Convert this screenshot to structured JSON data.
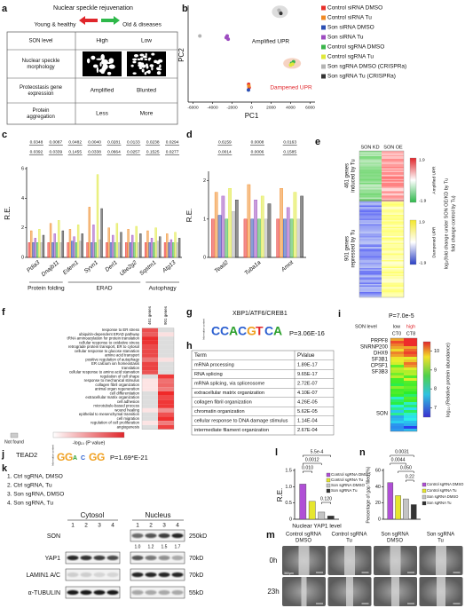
{
  "chart_data": [
    {
      "type": "scatter",
      "label": "b",
      "xlabel": "PC1",
      "ylabel": "PC2",
      "xlim": [
        -6500,
        6500
      ],
      "xticks": [
        -6000,
        -4000,
        -2000,
        0,
        2000,
        4000,
        6000
      ],
      "ylim": [
        -3000,
        3000
      ],
      "annotations": [
        "Amplified UPR",
        "Dampened UPR"
      ],
      "series": [
        {
          "name": "Control siRNA DMSO",
          "color": "#e8302a",
          "x": [
            -300,
            -250
          ],
          "y": [
            -1900,
            -2100
          ]
        },
        {
          "name": "Control siRNA Tu",
          "color": "#f08a24",
          "x": [
            -280
          ],
          "y": [
            -2000
          ]
        },
        {
          "name": "Son siRNA DMSO",
          "color": "#2b4fb3",
          "x": [
            -320
          ],
          "y": [
            -2250
          ]
        },
        {
          "name": "Son siRNA Tu",
          "color": "#9d4cc0",
          "x": [
            -2600,
            -2400,
            -2500
          ],
          "y": [
            1000,
            900,
            1100
          ]
        },
        {
          "name": "Control sgRNA DMSO",
          "color": "#3ab54a",
          "x": [
            4100,
            4300
          ],
          "y": [
            -600,
            -500
          ]
        },
        {
          "name": "Control sgRNA Tu",
          "color": "#dfe83a",
          "x": [
            4000,
            4200
          ],
          "y": [
            -700,
            -650
          ]
        },
        {
          "name": "Son sgRNA DMSO (CRISPRa)",
          "color": "#b3b3b3",
          "x": [
            2800,
            2900,
            -5300
          ],
          "y": [
            2700,
            2600,
            1100
          ]
        },
        {
          "name": "Son sgRNA Tu (CRISPRa)",
          "color": "#333333",
          "x": [
            3000
          ],
          "y": [
            2500
          ]
        }
      ]
    },
    {
      "type": "bar",
      "label": "c",
      "ylabel": "R.E.",
      "ylim": [
        0,
        6
      ],
      "yticks": [
        0,
        2,
        4,
        6
      ],
      "categories": [
        "Pdia3",
        "Dnajb11",
        "Edem1",
        "Syvn1",
        "Derl1",
        "Ube2g2",
        "Sqstm1",
        "Atg13"
      ],
      "pvalues_top": [
        "0.0348",
        "0.0087",
        "0.0482",
        "0.0040",
        "0.0281",
        "0.0133",
        "0.0238",
        "0.0294"
      ],
      "pvalues_bottom": [
        "0.0392",
        "0.0339",
        "0.1455",
        "0.0338",
        "0.0664",
        "0.0257",
        "0.1525",
        "0.0277"
      ],
      "groups": [
        "Protein folding",
        "ERAD",
        "Autophagy"
      ],
      "series": [
        {
          "color": "#e8302a",
          "values": [
            1,
            1,
            1,
            1,
            1,
            1,
            1,
            1
          ]
        },
        {
          "color": "#f08a24",
          "values": [
            1.8,
            2.3,
            1.9,
            3.4,
            2.0,
            1.9,
            1.8,
            1.6
          ]
        },
        {
          "color": "#2b4fb3",
          "values": [
            1.0,
            1.0,
            1.1,
            1.0,
            1.0,
            1.0,
            1.0,
            1.0
          ]
        },
        {
          "color": "#9d4cc0",
          "values": [
            1.3,
            1.6,
            1.4,
            2.2,
            1.5,
            1.5,
            1.3,
            1.2
          ]
        },
        {
          "color": "#3ab54a",
          "values": [
            1,
            1,
            1,
            1,
            1,
            1,
            1,
            1
          ]
        },
        {
          "color": "#dfe83a",
          "values": [
            1.9,
            2.5,
            2.2,
            5.6,
            2.3,
            2.1,
            2.0,
            1.7
          ]
        },
        {
          "color": "#b3b3b3",
          "values": [
            1.0,
            1.0,
            1.1,
            1.2,
            1.0,
            1.0,
            1.1,
            1.0
          ]
        },
        {
          "color": "#333333",
          "values": [
            1.5,
            1.8,
            1.6,
            3.3,
            1.7,
            1.6,
            1.4,
            1.3
          ]
        }
      ]
    },
    {
      "type": "bar",
      "label": "d",
      "ylabel": "R.E.",
      "ylim": [
        0,
        2.2
      ],
      "yticks": [
        0,
        1,
        2
      ],
      "categories": [
        "Tead2",
        "Tuba1a",
        "Amot"
      ],
      "pvalues_top": [
        "0.6159",
        "0.0008",
        "0.0163"
      ],
      "pvalues_bottom": [
        "0.0014",
        "0.0006",
        "0.1585"
      ],
      "series": [
        {
          "color": "#e8302a",
          "values": [
            1,
            1,
            1
          ]
        },
        {
          "color": "#f08a24",
          "values": [
            1.7,
            1.9,
            1.8
          ]
        },
        {
          "color": "#2b4fb3",
          "values": [
            1.1,
            1,
            1
          ]
        },
        {
          "color": "#9d4cc0",
          "values": [
            1.6,
            1.5,
            1.3
          ]
        },
        {
          "color": "#3ab54a",
          "values": [
            1,
            1,
            1
          ]
        },
        {
          "color": "#dfe83a",
          "values": [
            1.8,
            1.6,
            1.7
          ]
        },
        {
          "color": "#b3b3b3",
          "values": [
            1.2,
            1,
            1
          ]
        },
        {
          "color": "#333333",
          "values": [
            1.5,
            1.4,
            1.6
          ]
        }
      ]
    },
    {
      "type": "bar",
      "label": "l",
      "ylabel": "R.E.",
      "xlabel": "Nuclear YAP1 level",
      "ylim": [
        0,
        1.5
      ],
      "yticks": [
        0,
        0.5,
        {
          "value": 1,
          "label": "1.0"
        },
        1.5
      ],
      "pvalues": [
        "5.5e-4",
        "0.0012",
        "0.010",
        "0.120"
      ],
      "series": [
        {
          "name": "Control sgRNA DMSO",
          "color": "#b04fd6",
          "values": [
            1.08
          ]
        },
        {
          "name": "Control sgRNA Tu",
          "color": "#e6e62e",
          "values": [
            0.55
          ]
        },
        {
          "name": "Son sgRNA DMSO",
          "color": "#c4c4c4",
          "values": [
            0.22
          ]
        },
        {
          "name": "Son sgRNA Tu",
          "color": "#333333",
          "values": [
            0.1
          ]
        }
      ]
    },
    {
      "type": "bar",
      "label": "n",
      "ylabel": "Percentage of gap filled (%)",
      "ylim": [
        0,
        60
      ],
      "yticks": [
        0,
        20,
        40,
        60
      ],
      "pvalues": [
        "0.0031",
        "0.0044",
        "0.050",
        "0.22"
      ],
      "series": [
        {
          "name": "Control sgRNA DMSO",
          "color": "#b04fd6",
          "values": [
            45
          ]
        },
        {
          "name": "Control sgRNA Tu",
          "color": "#e6e62e",
          "values": [
            29
          ]
        },
        {
          "name": "Son sgRNA DMSO",
          "color": "#c4c4c4",
          "values": [
            25
          ]
        },
        {
          "name": "Son sgRNA Tu",
          "color": "#333333",
          "values": [
            18
          ]
        }
      ]
    }
  ],
  "figure": {
    "a": {
      "label": "a",
      "title": "Nuclear speckle rejuvenation",
      "young": "Young & healthy",
      "old": "Old & diseases",
      "rows": [
        {
          "name": [
            "SON level"
          ],
          "young": "High",
          "old": "Low"
        },
        {
          "name": [
            "Nuclear speckle",
            "morphology"
          ]
        },
        {
          "name": [
            "Proteostasis gene",
            "expression"
          ],
          "young": "Amplified",
          "old": "Blunted"
        },
        {
          "name": [
            "Protein",
            "aggregation"
          ],
          "young": "Less",
          "old": "More"
        }
      ]
    },
    "e": {
      "label": "e",
      "columns": [
        "SON KD",
        "SON OE"
      ],
      "groups": [
        [
          "461 genes",
          "induced by Tu"
        ],
        [
          "901 genes",
          "repressed by Tu"
        ]
      ],
      "colorbars": [
        {
          "max": "1.9",
          "min": "-1.9",
          "name": "Amplified UPR"
        },
        {
          "max": "1.9",
          "min": "-1.9",
          "name": "Dampened UPR"
        }
      ],
      "scale_label": [
        "log₂(fold change under SON OE/KD by Tu",
        "fold change control by Tu)"
      ]
    },
    "f": {
      "label": "f",
      "columns": [
        "461 genes",
        "901 genes"
      ],
      "terms": [
        "response to ER stress",
        "ubiquitin-dependent ERAD pathway",
        "tRNA aminoacylation for protein translation",
        "cellular response to oxidative stress",
        "retrograde protein transport, ER to cytosol",
        "cellular response to glucose starvation",
        "amino acid transport",
        "positive regulation of autophagy",
        "ER calcium ion homeostasis",
        "translation",
        "cellular response to amino acid starvation",
        "regulation of cell shape",
        "response to mechanical stimulus",
        "collagen fibril organization",
        "animal organ regeneration",
        "cell differentiation",
        "extracellular matrix organization",
        "cell adhesion",
        "microtubule-based process",
        "wound healing",
        "epithelial to mesenchymal transition",
        "cell migration",
        "regulation of cell proliferation",
        "angiogenesis"
      ],
      "not_found": "Not found",
      "scale_label": "-log₁₀ (P value)"
    },
    "g": {
      "label": "g",
      "title": "XBP1/ATF6/CREB1",
      "logo": [
        "C",
        "C",
        "A",
        "C",
        "G",
        "T",
        "C",
        "A"
      ],
      "axis": "Information content",
      "p": "P=3.06E-16"
    },
    "h": {
      "label": "h",
      "header": [
        "Term",
        "PValue"
      ],
      "rows": [
        [
          "mRNA processing",
          "1.89E-17"
        ],
        [
          "RNA splicing",
          "9.65E-17"
        ],
        [
          "mRNA splicing, via spliceosome",
          "2.72E-07"
        ],
        [
          "extracellular matrix organization",
          "4.10E-07"
        ],
        [
          "collagen fibril organization",
          "4.26E-05"
        ],
        [
          "chromatin organization",
          "5.62E-05"
        ],
        [
          "cellular response to DNA damage stimulus",
          "1.14E-04"
        ],
        [
          "intermediate filament organization",
          "2.67E-04"
        ]
      ]
    },
    "i": {
      "label": "i",
      "p": "P=7.0e-5",
      "son_level": "SON level",
      "levels": [
        "low",
        "high"
      ],
      "timepoints": [
        "CT0",
        "CT8"
      ],
      "proteins": [
        "PRPF8",
        "SNRNP200",
        "DHX9",
        "SF3B1",
        "CPSF1",
        "SF3B3",
        "SON"
      ],
      "colorbar": {
        "lim": [
          6.5,
          10.5
        ],
        "ticks": [
          7,
          8,
          9,
          10
        ]
      },
      "scale_label": "log₁₀ (Relative protein abundance)"
    },
    "j": {
      "label": "j",
      "title": "TEAD2",
      "logo": [
        "G",
        "G",
        "A",
        "C",
        "G",
        "G"
      ],
      "axis": "Information content",
      "p": "P=1.69*E-21"
    },
    "k": {
      "label": "k",
      "conditions": [
        "1. Ctrl sgRNA, DMSO",
        "2. Ctrl sgRNA, Tu",
        "3. Son sgRNA, DMSO",
        "4. Son sgRNA, Tu"
      ],
      "fractions": [
        "Cytosol",
        "Nucleus"
      ],
      "lanes": [
        "1",
        "2",
        "3",
        "4"
      ],
      "blots": [
        {
          "name": "SON",
          "size": "250kD",
          "quant": [
            "1.0",
            "1.2",
            "1.5",
            "1.7"
          ]
        },
        {
          "name": "YAP1",
          "size": "70kD"
        },
        {
          "name": "LAMIN1 A/C",
          "size": "70kD"
        },
        {
          "name": "α-TUBULIN",
          "size": "55kD"
        }
      ]
    },
    "m": {
      "label": "m",
      "columns": [
        [
          "Control sgRNA",
          "DMSO"
        ],
        [
          "Control sgRNA",
          "Tu"
        ],
        [
          "Son sgRNA",
          "DMSO"
        ],
        [
          "Son sgRNA",
          "Tu"
        ]
      ],
      "rows": [
        "0h",
        "23h"
      ],
      "scale": "360μm"
    }
  }
}
